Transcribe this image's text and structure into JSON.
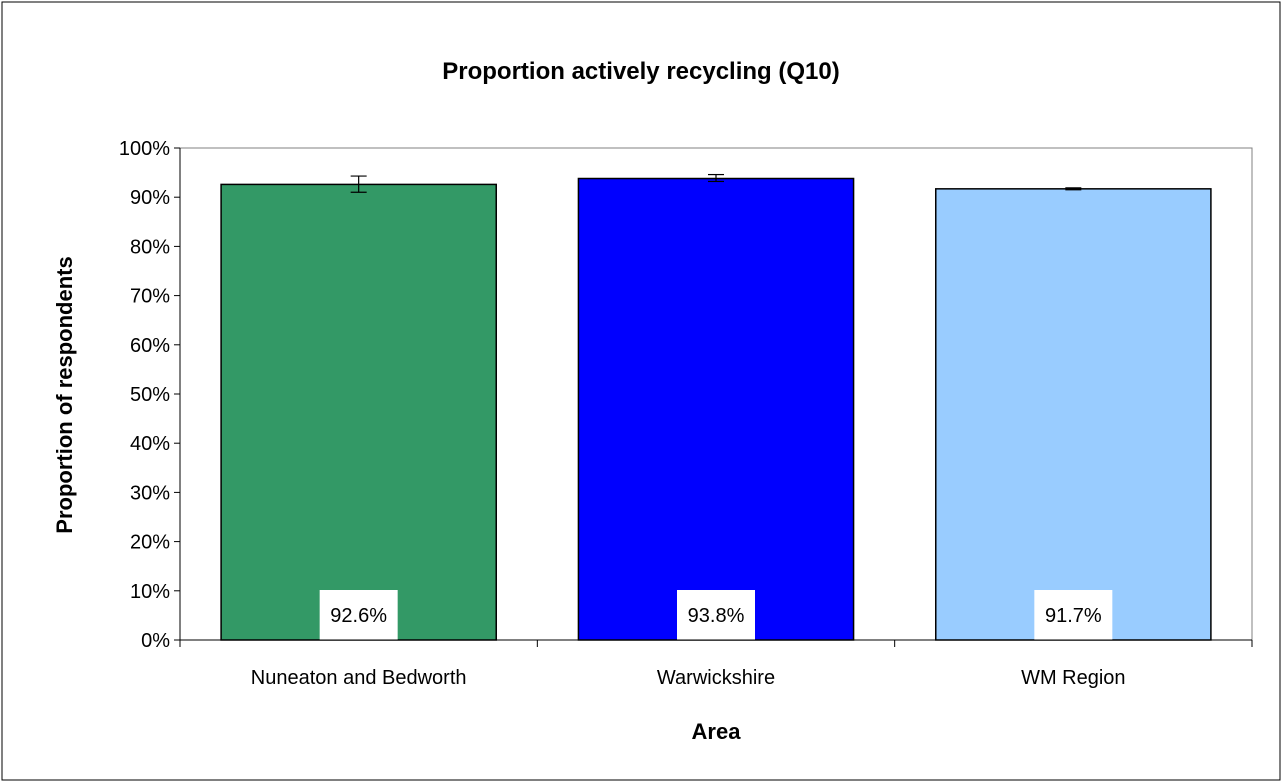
{
  "chart_data": {
    "type": "bar",
    "title": "Proportion actively recycling (Q10)",
    "xlabel": "Area",
    "ylabel": "Proportion of respondents",
    "categories": [
      "Nuneaton and Bedworth",
      "Warwickshire",
      "WM Region"
    ],
    "values": [
      92.6,
      93.8,
      91.7
    ],
    "value_labels": [
      "92.6%",
      "93.8%",
      "91.7%"
    ],
    "error_bars": [
      {
        "low": 91.0,
        "high": 94.3
      },
      {
        "low": 93.2,
        "high": 94.6
      },
      {
        "low": 91.5,
        "high": 91.9
      }
    ],
    "colors": [
      "#339966",
      "#0000ff",
      "#99ccff"
    ],
    "ylim": [
      0,
      100
    ],
    "yticks": [
      0,
      10,
      20,
      30,
      40,
      50,
      60,
      70,
      80,
      90,
      100
    ],
    "ytick_labels": [
      "0%",
      "10%",
      "20%",
      "30%",
      "40%",
      "50%",
      "60%",
      "70%",
      "80%",
      "90%",
      "100%"
    ],
    "grid": false,
    "legend": "none"
  }
}
